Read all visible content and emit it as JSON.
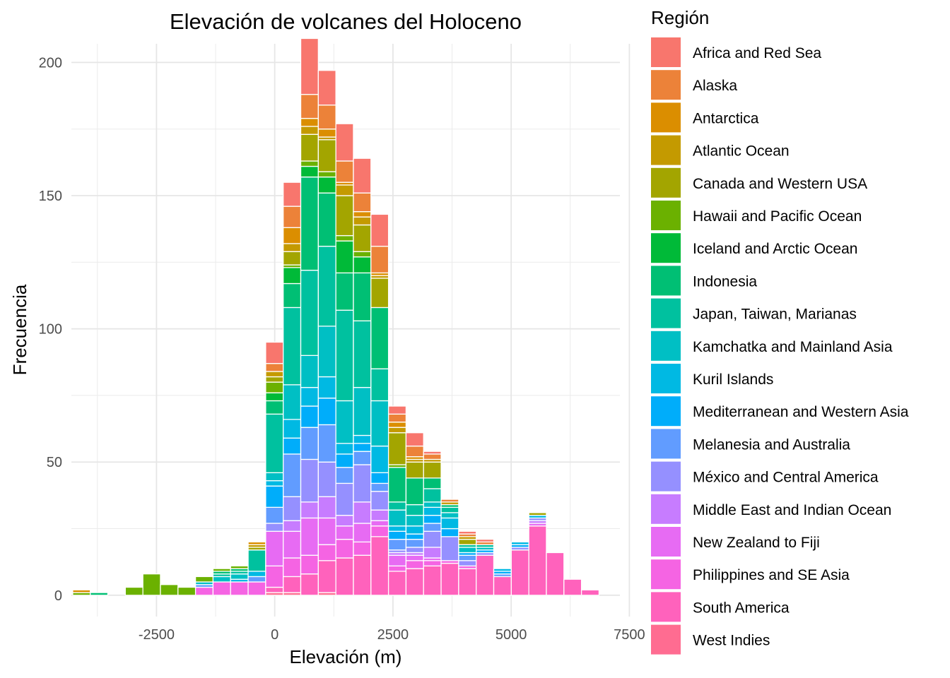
{
  "chart_data": {
    "type": "bar",
    "subtype": "stacked-histogram",
    "title": "Elevación de volcanes del Holoceno",
    "xlabel": "Elevación (m)",
    "ylabel": "Frecuencia",
    "xlim": [
      -4300,
      7300
    ],
    "ylim": [
      -8,
      207
    ],
    "xticks": [
      -2500,
      0,
      2500,
      5000,
      7500
    ],
    "xtick_labels": [
      "-2500",
      "0",
      "2500",
      "5000",
      "7500"
    ],
    "yticks": [
      0,
      50,
      100,
      150,
      200
    ],
    "ytick_labels": [
      "0",
      "50",
      "100",
      "150",
      "200"
    ],
    "grid": true,
    "legend_title": "Región",
    "legend_position": "right",
    "regions": [
      {
        "name": "Africa and Red Sea",
        "color": "#F8766D"
      },
      {
        "name": "Alaska",
        "color": "#EC8239"
      },
      {
        "name": "Antarctica",
        "color": "#DB8E00"
      },
      {
        "name": "Atlantic Ocean",
        "color": "#C49A00"
      },
      {
        "name": "Canada and Western USA",
        "color": "#A3A500"
      },
      {
        "name": "Hawaii and Pacific Ocean",
        "color": "#6BB100"
      },
      {
        "name": "Iceland and Arctic Ocean",
        "color": "#00BA38"
      },
      {
        "name": "Indonesia",
        "color": "#00BF74"
      },
      {
        "name": "Japan, Taiwan, Marianas",
        "color": "#00C19F"
      },
      {
        "name": "Kamchatka and Mainland Asia",
        "color": "#00BFC4"
      },
      {
        "name": "Kuril Islands",
        "color": "#00B9E3"
      },
      {
        "name": "Mediterranean and Western Asia",
        "color": "#00ADFA"
      },
      {
        "name": "Melanesia and Australia",
        "color": "#619CFF"
      },
      {
        "name": "México and Central America",
        "color": "#9590FF"
      },
      {
        "name": "Middle East and Indian Ocean",
        "color": "#C77CFF"
      },
      {
        "name": "New Zealand to Fiji",
        "color": "#E76BF3"
      },
      {
        "name": "Philippines and SE Asia",
        "color": "#F564E3"
      },
      {
        "name": "South America",
        "color": "#FF62BC"
      },
      {
        "name": "West Indies",
        "color": "#FF6C91"
      }
    ],
    "bin_width": 371,
    "bins": [
      {
        "x0": -4272,
        "segments": [
          [
            5,
            1
          ],
          [
            2,
            1
          ]
        ]
      },
      {
        "x0": -3901,
        "segments": [
          [
            7,
            1
          ]
        ]
      },
      {
        "x0": -3530,
        "segments": []
      },
      {
        "x0": -3159,
        "segments": [
          [
            5,
            3
          ]
        ]
      },
      {
        "x0": -2788,
        "segments": [
          [
            5,
            8
          ]
        ]
      },
      {
        "x0": -2417,
        "segments": [
          [
            5,
            4
          ]
        ]
      },
      {
        "x0": -2046,
        "segments": [
          [
            5,
            3
          ]
        ]
      },
      {
        "x0": -1675,
        "segments": [
          [
            16,
            3
          ],
          [
            12,
            1
          ],
          [
            9,
            1
          ],
          [
            5,
            2
          ]
        ]
      },
      {
        "x0": -1304,
        "segments": [
          [
            16,
            5
          ],
          [
            9,
            2
          ],
          [
            8,
            1
          ],
          [
            7,
            1
          ],
          [
            5,
            1
          ]
        ]
      },
      {
        "x0": -933,
        "segments": [
          [
            16,
            5
          ],
          [
            10,
            1
          ],
          [
            9,
            2
          ],
          [
            8,
            1
          ],
          [
            7,
            1
          ],
          [
            5,
            1
          ]
        ]
      },
      {
        "x0": -562,
        "segments": [
          [
            16,
            5
          ],
          [
            12,
            2
          ],
          [
            10,
            2
          ],
          [
            8,
            8
          ],
          [
            4,
            1
          ],
          [
            3,
            1
          ],
          [
            2,
            1
          ]
        ]
      },
      {
        "x0": -191,
        "segments": [
          [
            18,
            1
          ],
          [
            17,
            2
          ],
          [
            16,
            8
          ],
          [
            15,
            13
          ],
          [
            13,
            3
          ],
          [
            12,
            6
          ],
          [
            11,
            8
          ],
          [
            10,
            2
          ],
          [
            9,
            3
          ],
          [
            8,
            22
          ],
          [
            7,
            5
          ],
          [
            6,
            3
          ],
          [
            5,
            4
          ],
          [
            4,
            2
          ],
          [
            3,
            2
          ],
          [
            1,
            3
          ],
          [
            0,
            8
          ]
        ]
      },
      {
        "x0": 180,
        "segments": [
          [
            18,
            1
          ],
          [
            17,
            6
          ],
          [
            16,
            7
          ],
          [
            15,
            10
          ],
          [
            14,
            4
          ],
          [
            13,
            9
          ],
          [
            12,
            16
          ],
          [
            11,
            6
          ],
          [
            10,
            7
          ],
          [
            9,
            13
          ],
          [
            8,
            29
          ],
          [
            7,
            9
          ],
          [
            6,
            6
          ],
          [
            5,
            1
          ],
          [
            4,
            5
          ],
          [
            3,
            3
          ],
          [
            2,
            6
          ],
          [
            1,
            8
          ],
          [
            0,
            9
          ]
        ]
      },
      {
        "x0": 551,
        "segments": [
          [
            17,
            8
          ],
          [
            16,
            7
          ],
          [
            15,
            14
          ],
          [
            14,
            6
          ],
          [
            13,
            16
          ],
          [
            12,
            12
          ],
          [
            11,
            8
          ],
          [
            10,
            7
          ],
          [
            9,
            12
          ],
          [
            8,
            32
          ],
          [
            7,
            35
          ],
          [
            6,
            4
          ],
          [
            5,
            2
          ],
          [
            4,
            10
          ],
          [
            3,
            3
          ],
          [
            2,
            3
          ],
          [
            1,
            9
          ],
          [
            0,
            21
          ]
        ]
      },
      {
        "x0": 922,
        "segments": [
          [
            18,
            1
          ],
          [
            17,
            12
          ],
          [
            16,
            6
          ],
          [
            15,
            10
          ],
          [
            14,
            8
          ],
          [
            13,
            13
          ],
          [
            12,
            14
          ],
          [
            11,
            10
          ],
          [
            10,
            8
          ],
          [
            9,
            19
          ],
          [
            8,
            30
          ],
          [
            7,
            20
          ],
          [
            6,
            6
          ],
          [
            5,
            2
          ],
          [
            4,
            12
          ],
          [
            3,
            1
          ],
          [
            2,
            3
          ],
          [
            1,
            9
          ],
          [
            0,
            13
          ]
        ]
      },
      {
        "x0": 1293,
        "segments": [
          [
            17,
            14
          ],
          [
            16,
            7
          ],
          [
            15,
            5
          ],
          [
            14,
            4
          ],
          [
            13,
            12
          ],
          [
            12,
            6
          ],
          [
            11,
            5
          ],
          [
            10,
            4
          ],
          [
            9,
            16
          ],
          [
            8,
            34
          ],
          [
            7,
            14
          ],
          [
            6,
            12
          ],
          [
            5,
            2
          ],
          [
            4,
            15
          ],
          [
            3,
            4
          ],
          [
            2,
            1
          ],
          [
            1,
            8
          ],
          [
            0,
            14
          ]
        ]
      },
      {
        "x0": 1664,
        "segments": [
          [
            17,
            15
          ],
          [
            16,
            5
          ],
          [
            15,
            7
          ],
          [
            14,
            8
          ],
          [
            13,
            14
          ],
          [
            12,
            5
          ],
          [
            11,
            3
          ],
          [
            10,
            3
          ],
          [
            9,
            18
          ],
          [
            8,
            25
          ],
          [
            7,
            18
          ],
          [
            6,
            6
          ],
          [
            5,
            2
          ],
          [
            4,
            10
          ],
          [
            3,
            3
          ],
          [
            2,
            2
          ],
          [
            1,
            7
          ],
          [
            0,
            13
          ]
        ]
      },
      {
        "x0": 2035,
        "segments": [
          [
            17,
            22
          ],
          [
            16,
            4
          ],
          [
            15,
            2
          ],
          [
            14,
            4
          ],
          [
            13,
            7
          ],
          [
            12,
            3
          ],
          [
            11,
            4
          ],
          [
            10,
            10
          ],
          [
            9,
            17
          ],
          [
            8,
            12
          ],
          [
            7,
            23
          ],
          [
            4,
            11
          ],
          [
            3,
            1
          ],
          [
            2,
            1
          ],
          [
            1,
            10
          ],
          [
            0,
            12
          ]
        ]
      },
      {
        "x0": 2406,
        "segments": [
          [
            17,
            9
          ],
          [
            16,
            2
          ],
          [
            15,
            4
          ],
          [
            14,
            1
          ],
          [
            13,
            1
          ],
          [
            12,
            4
          ],
          [
            11,
            3
          ],
          [
            10,
            2
          ],
          [
            9,
            6
          ],
          [
            8,
            3
          ],
          [
            7,
            13
          ],
          [
            5,
            1
          ],
          [
            4,
            12
          ],
          [
            3,
            2
          ],
          [
            2,
            2
          ],
          [
            1,
            3
          ],
          [
            0,
            3
          ]
        ]
      },
      {
        "x0": 2777,
        "segments": [
          [
            17,
            10
          ],
          [
            16,
            3
          ],
          [
            15,
            2
          ],
          [
            14,
            1
          ],
          [
            13,
            2
          ],
          [
            12,
            3
          ],
          [
            11,
            2
          ],
          [
            10,
            3
          ],
          [
            9,
            4
          ],
          [
            8,
            4
          ],
          [
            7,
            10
          ],
          [
            4,
            6
          ],
          [
            3,
            1
          ],
          [
            2,
            1
          ],
          [
            1,
            4
          ],
          [
            0,
            5
          ]
        ]
      },
      {
        "x0": 3148,
        "segments": [
          [
            17,
            11
          ],
          [
            16,
            2
          ],
          [
            15,
            1
          ],
          [
            14,
            4
          ],
          [
            13,
            6
          ],
          [
            12,
            3
          ],
          [
            11,
            3
          ],
          [
            10,
            3
          ],
          [
            9,
            2
          ],
          [
            8,
            5
          ],
          [
            7,
            4
          ],
          [
            4,
            6
          ],
          [
            3,
            1
          ],
          [
            1,
            2
          ],
          [
            0,
            1
          ]
        ]
      },
      {
        "x0": 3519,
        "segments": [
          [
            17,
            12
          ],
          [
            16,
            1
          ],
          [
            13,
            9
          ],
          [
            11,
            3
          ],
          [
            10,
            4
          ],
          [
            9,
            2
          ],
          [
            8,
            2
          ],
          [
            7,
            1
          ],
          [
            3,
            1
          ],
          [
            1,
            1
          ]
        ]
      },
      {
        "x0": 3890,
        "segments": [
          [
            17,
            10
          ],
          [
            16,
            1
          ],
          [
            13,
            2
          ],
          [
            12,
            2
          ],
          [
            11,
            1
          ],
          [
            9,
            2
          ],
          [
            8,
            1
          ],
          [
            4,
            2
          ],
          [
            3,
            1
          ],
          [
            1,
            1
          ],
          [
            0,
            1
          ]
        ]
      },
      {
        "x0": 4261,
        "segments": [
          [
            17,
            15
          ],
          [
            13,
            1
          ],
          [
            11,
            1
          ],
          [
            9,
            1
          ],
          [
            8,
            1
          ],
          [
            1,
            1
          ],
          [
            0,
            1
          ]
        ]
      },
      {
        "x0": 4632,
        "segments": [
          [
            17,
            7
          ],
          [
            12,
            1
          ],
          [
            11,
            1
          ],
          [
            10,
            1
          ]
        ]
      },
      {
        "x0": 5003,
        "segments": [
          [
            17,
            17
          ],
          [
            13,
            1
          ],
          [
            11,
            1
          ],
          [
            10,
            1
          ]
        ]
      },
      {
        "x0": 5374,
        "segments": [
          [
            17,
            26
          ],
          [
            15,
            1
          ],
          [
            14,
            1
          ],
          [
            13,
            1
          ],
          [
            10,
            1
          ],
          [
            4,
            1
          ]
        ]
      },
      {
        "x0": 5745,
        "segments": [
          [
            17,
            16
          ]
        ]
      },
      {
        "x0": 6116,
        "segments": [
          [
            17,
            6
          ]
        ]
      },
      {
        "x0": 6487,
        "segments": [
          [
            17,
            2
          ]
        ]
      }
    ]
  }
}
